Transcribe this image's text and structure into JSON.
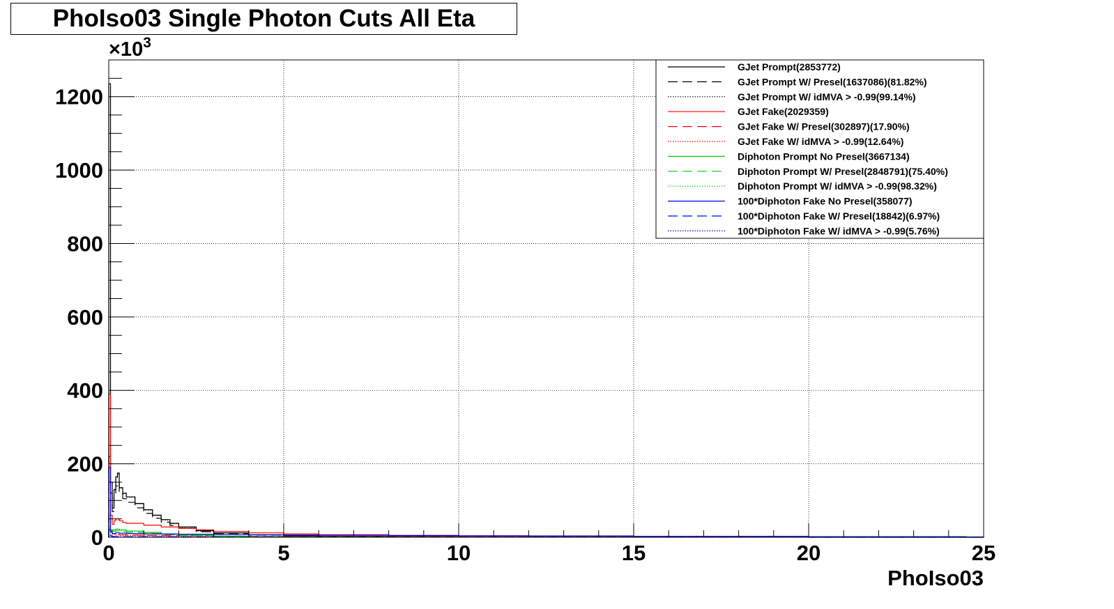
{
  "chart_data": {
    "type": "line",
    "title": "PhoIso03 Single Photon Cuts All Eta",
    "xlabel": "PhoIso03",
    "ylabel": "",
    "y_exponent_label": "×10",
    "y_exponent_power": "3",
    "xlim": [
      0,
      25
    ],
    "ylim": [
      0,
      1300
    ],
    "x_ticks": [
      0,
      5,
      10,
      15,
      20,
      25
    ],
    "y_ticks": [
      0,
      200,
      400,
      600,
      800,
      1000,
      1200
    ],
    "grid": true,
    "legend_position": "top-right",
    "series": [
      {
        "name": "GJet Prompt(2853772)",
        "color": "#000000",
        "dash": "solid",
        "x": [
          0,
          0.05,
          0.1,
          0.15,
          0.2,
          0.25,
          0.3,
          0.4,
          0.5,
          0.75,
          1.0,
          1.25,
          1.5,
          1.75,
          2.0,
          2.5,
          3.0,
          4.0,
          5.0,
          6.0,
          8.0,
          10.0,
          15.0,
          20.0,
          25.0
        ],
        "y": [
          1235,
          150,
          80,
          130,
          165,
          175,
          135,
          120,
          110,
          92,
          75,
          60,
          48,
          38,
          28,
          18,
          12,
          7,
          4,
          2.5,
          1.5,
          1,
          0.6,
          0.3,
          0
        ]
      },
      {
        "name": "GJet Prompt W/ Presel(1637086)(81.82%)",
        "color": "#000000",
        "dash": "14,7",
        "x": [
          0,
          0.05,
          0.1,
          0.15,
          0.2,
          0.25,
          0.3,
          0.4,
          0.5,
          0.75,
          1.0,
          1.25,
          1.5,
          1.75,
          2.0,
          2.5,
          3.0,
          4.0,
          5.0,
          6.0,
          8.0,
          10.0,
          15.0,
          20.0,
          25.0
        ],
        "y": [
          220,
          120,
          70,
          110,
          140,
          150,
          118,
          105,
          95,
          80,
          65,
          52,
          41,
          32,
          24,
          15,
          10,
          6,
          3.5,
          2,
          1.2,
          0.8,
          0.5,
          0.2,
          0
        ]
      },
      {
        "name": "GJet Prompt W/ idMVA > -0.99(99.14%)",
        "color": "#000000",
        "dash": "1.5,2",
        "x": [
          0,
          0.05,
          0.1,
          0.15,
          0.2,
          0.25,
          0.3,
          0.4,
          0.5,
          0.75,
          1.0,
          1.25,
          1.5,
          1.75,
          2.0,
          2.5,
          3.0,
          4.0,
          5.0,
          6.0,
          8.0,
          10.0,
          15.0,
          20.0,
          25.0
        ],
        "y": [
          1225,
          148,
          79,
          129,
          163,
          173,
          134,
          119,
          109,
          91,
          74,
          59,
          47,
          37,
          27,
          17,
          11,
          6.5,
          3.8,
          2.3,
          1.4,
          0.9,
          0.5,
          0.2,
          0
        ]
      },
      {
        "name": "GJet Fake(2029359)",
        "color": "#ff0000",
        "dash": "solid",
        "x": [
          0,
          0.05,
          0.1,
          0.15,
          0.2,
          0.3,
          0.4,
          0.5,
          1.0,
          1.5,
          2.0,
          2.5,
          3.0,
          4.0,
          5.0,
          6.0,
          8.0,
          10.0,
          15.0,
          20.0,
          25.0
        ],
        "y": [
          390,
          60,
          35,
          45,
          50,
          45,
          40,
          38,
          33,
          28,
          24,
          20,
          16,
          12,
          9,
          7,
          4,
          2.5,
          1,
          0.5,
          0
        ]
      },
      {
        "name": "GJet Fake W/ Presel(302897)(17.90%)",
        "color": "#ff0000",
        "dash": "14,7",
        "x": [
          0,
          0.05,
          0.1,
          0.2,
          0.3,
          0.5,
          1.0,
          1.5,
          2.0,
          3.0,
          4.0,
          5.0,
          6.0,
          8.0,
          10.0,
          15.0,
          20.0,
          25.0
        ],
        "y": [
          70,
          20,
          10,
          8,
          7,
          6,
          5,
          4.5,
          4,
          3,
          2.5,
          2,
          1.5,
          1,
          0.6,
          0.3,
          0.1,
          0
        ]
      },
      {
        "name": "GJet Fake W/ idMVA > -0.99(12.64%)",
        "color": "#ff0000",
        "dash": "1.5,2",
        "x": [
          0,
          0.05,
          0.1,
          0.2,
          0.3,
          0.5,
          1.0,
          1.5,
          2.0,
          3.0,
          4.0,
          5.0,
          6.0,
          8.0,
          10.0,
          15.0,
          20.0,
          25.0
        ],
        "y": [
          50,
          14,
          8,
          6,
          5,
          4.5,
          4,
          3.5,
          3,
          2.5,
          2,
          1.5,
          1.1,
          0.7,
          0.4,
          0.2,
          0.1,
          0
        ]
      },
      {
        "name": "Diphoton Prompt No Presel(3667134)",
        "color": "#00cc00",
        "dash": "solid",
        "x": [
          0,
          0.05,
          0.1,
          0.2,
          0.3,
          0.5,
          1.0,
          1.5,
          2.0,
          3.0,
          4.0,
          5.0,
          6.0,
          8.0,
          10.0,
          15.0,
          20.0,
          25.0
        ],
        "y": [
          30,
          18,
          20,
          22,
          20,
          17,
          13,
          9,
          6,
          3,
          1.5,
          1,
          0.6,
          0.3,
          0.2,
          0.1,
          0.05,
          0
        ]
      },
      {
        "name": "Diphoton Prompt W/ Presel(2848791)(75.40%)",
        "color": "#00cc00",
        "dash": "14,7",
        "x": [
          0,
          0.05,
          0.1,
          0.2,
          0.3,
          0.5,
          1.0,
          1.5,
          2.0,
          3.0,
          4.0,
          5.0,
          6.0,
          8.0,
          10.0,
          15.0,
          20.0,
          25.0
        ],
        "y": [
          24,
          14,
          16,
          17,
          15,
          13,
          10,
          7,
          4.5,
          2.2,
          1.1,
          0.7,
          0.4,
          0.2,
          0.1,
          0.05,
          0.02,
          0
        ]
      },
      {
        "name": "Diphoton Prompt W/ idMVA > -0.99(98.32%)",
        "color": "#00cc00",
        "dash": "1.5,2",
        "x": [
          0,
          0.05,
          0.1,
          0.2,
          0.3,
          0.5,
          1.0,
          1.5,
          2.0,
          3.0,
          4.0,
          5.0,
          6.0,
          8.0,
          10.0,
          15.0,
          20.0,
          25.0
        ],
        "y": [
          29,
          17,
          19,
          21,
          19,
          16,
          12.5,
          8.7,
          5.8,
          2.9,
          1.4,
          0.9,
          0.55,
          0.28,
          0.18,
          0.09,
          0.04,
          0
        ]
      },
      {
        "name": "100*Diphoton Fake No Presel(358077)",
        "color": "#0000ff",
        "dash": "solid",
        "x": [
          0,
          0.05,
          0.1,
          0.2,
          0.3,
          0.5,
          1.0,
          1.5,
          2.0,
          3.0,
          4.0,
          5.0,
          6.0,
          8.0,
          10.0,
          12.0,
          15.0,
          20.0,
          24.5,
          25.0
        ],
        "y": [
          190,
          15,
          10,
          12,
          11,
          10,
          9,
          8.5,
          8,
          7,
          6.5,
          6,
          5.5,
          5,
          4,
          3.5,
          2.5,
          1.5,
          0.8,
          0
        ]
      },
      {
        "name": "100*Diphoton Fake W/ Presel(18842)(6.97%)",
        "color": "#0000ff",
        "dash": "14,7",
        "x": [
          0,
          0.05,
          0.1,
          0.2,
          0.5,
          1.0,
          2.0,
          3.0,
          5.0,
          8.0,
          10.0,
          15.0,
          20.0,
          25.0
        ],
        "y": [
          20,
          4,
          2,
          1.5,
          1.2,
          1,
          0.8,
          0.6,
          0.4,
          0.3,
          0.2,
          0.1,
          0.05,
          0
        ]
      },
      {
        "name": "100*Diphoton Fake W/ idMVA > -0.99(5.76%)",
        "color": "#0000ff",
        "dash": "1.5,2",
        "x": [
          0,
          0.05,
          0.1,
          0.2,
          0.5,
          1.0,
          2.0,
          3.0,
          5.0,
          8.0,
          10.0,
          15.0,
          20.0,
          25.0
        ],
        "y": [
          15,
          3,
          1.6,
          1.2,
          1,
          0.8,
          0.6,
          0.5,
          0.3,
          0.2,
          0.15,
          0.08,
          0.04,
          0
        ]
      }
    ]
  }
}
